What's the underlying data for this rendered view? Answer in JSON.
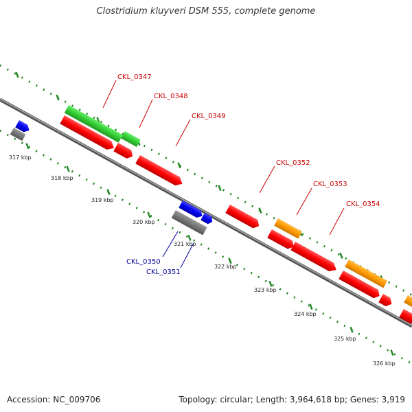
{
  "title": "Clostridium kluyveri DSM 555, complete genome",
  "footer": {
    "accession": "Accession: NC_009706",
    "stats": "Topology: circular; Length: 3,964,618 bp; Genes: 3,919"
  },
  "colors": {
    "red": "#ff0000",
    "green": "#33cc33",
    "blue": "#0000ee",
    "orange": "#ff9900",
    "gray": "#777777",
    "teal": "#00eecc",
    "label_red": "#cc0000",
    "label_blue": "#000099",
    "tick_green": "#228822"
  },
  "kbp_labels": [
    "317 kbp",
    "318 kbp",
    "319 kbp",
    "320 kbp",
    "321 kbp",
    "322 kbp",
    "323 kbp",
    "324 kbp",
    "325 kbp",
    "326 kbp"
  ],
  "gene_labels": [
    {
      "text": "CKL_0347",
      "color": "red"
    },
    {
      "text": "CKL_0348",
      "color": "red"
    },
    {
      "text": "CKL_0349",
      "color": "red"
    },
    {
      "text": "CKL_0352",
      "color": "red"
    },
    {
      "text": "CKL_0353",
      "color": "red"
    },
    {
      "text": "CKL_0354",
      "color": "red"
    },
    {
      "text": "CKL_0350",
      "color": "blue"
    },
    {
      "text": "CKL_0351",
      "color": "blue"
    }
  ]
}
